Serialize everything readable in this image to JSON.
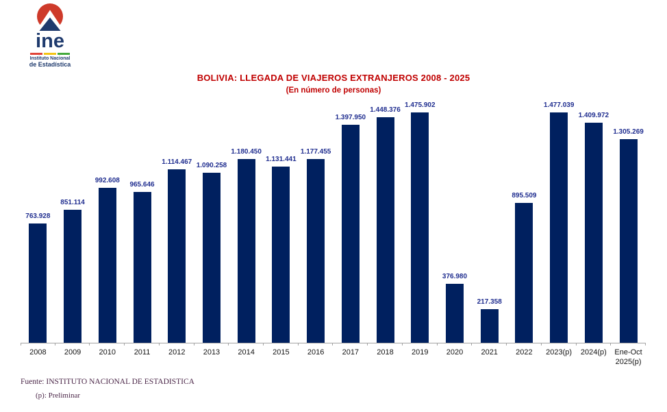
{
  "logo": {
    "name": "ine",
    "institute_line1": "Instituto Nacional",
    "institute_line2": "de Estadística",
    "colors": {
      "mark_red": "#CE3A2A",
      "mark_blue": "#1E3A6D",
      "flag_red": "#E04438",
      "flag_yellow": "#F3C414",
      "flag_green": "#43A93C"
    }
  },
  "header": {
    "title": "BOLIVIA: LLEGADA DE VIAJEROS EXTRANJEROS  2008 - 2025",
    "subtitle": "(En número de personas)",
    "title_color": "#C00000"
  },
  "chart_data": {
    "type": "bar",
    "title": "BOLIVIA: LLEGADA DE VIAJEROS EXTRANJEROS  2008 - 2025",
    "subtitle": "(En número de personas)",
    "categories": [
      "2008",
      "2009",
      "2010",
      "2011",
      "2012",
      "2013",
      "2014",
      "2015",
      "2016",
      "2017",
      "2018",
      "2019",
      "2020",
      "2021",
      "2022",
      "2023(p)",
      "2024(p)",
      "Ene-Oct 2025(p)"
    ],
    "values": [
      763928,
      851114,
      992608,
      965646,
      1114467,
      1090258,
      1180450,
      1131441,
      1177455,
      1397950,
      1448376,
      1475902,
      376980,
      217358,
      895509,
      1477039,
      1409972,
      1305269
    ],
    "value_labels": [
      "763.928",
      "851.114",
      "992.608",
      "965.646",
      "1.114.467",
      "1.090.258",
      "1.180.450",
      "1.131.441",
      "1.177.455",
      "1.397.950",
      "1.448.376",
      "1.475.902",
      "376.980",
      "217.358",
      "895.509",
      "1.477.039",
      "1.409.972",
      "1.305.269"
    ],
    "xlabel": "",
    "ylabel": "",
    "ylim": [
      0,
      1550000
    ],
    "grid": false,
    "legend": "none",
    "bar_color": "#00205F",
    "data_label_color": "#1F2D8F",
    "axis_color": "#A3A3A3"
  },
  "footer": {
    "source": "Fuente: INSTITUTO NACIONAL DE ESTADISTICA",
    "note": "(p): Preliminar"
  }
}
